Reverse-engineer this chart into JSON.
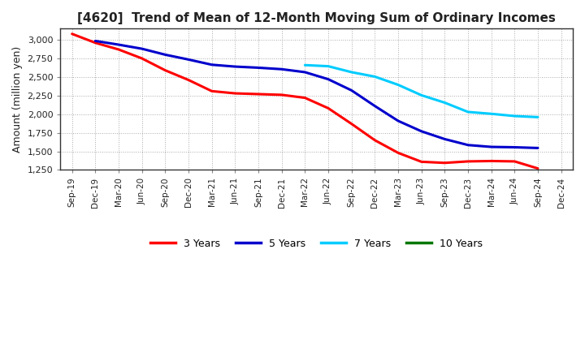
{
  "title": "[4620]  Trend of Mean of 12-Month Moving Sum of Ordinary Incomes",
  "ylabel": "Amount (million yen)",
  "ylim": [
    1250,
    3150
  ],
  "yticks": [
    1250,
    1500,
    1750,
    2000,
    2250,
    2500,
    2750,
    3000
  ],
  "background_color": "#ffffff",
  "plot_bg_color": "#ffffff",
  "grid_color": "#aaaaaa",
  "x_labels": [
    "Sep-19",
    "Dec-19",
    "Mar-20",
    "Jun-20",
    "Sep-20",
    "Dec-20",
    "Mar-21",
    "Jun-21",
    "Sep-21",
    "Dec-21",
    "Mar-22",
    "Jun-22",
    "Sep-22",
    "Dec-22",
    "Mar-23",
    "Jun-23",
    "Sep-23",
    "Dec-23",
    "Mar-24",
    "Jun-24",
    "Sep-24",
    "Dec-24"
  ],
  "series": {
    "3 Years": {
      "color": "#ff0000",
      "data_y": [
        3080,
        2960,
        2870,
        2750,
        2590,
        2460,
        2310,
        2280,
        2270,
        2260,
        2220,
        2080,
        1870,
        1650,
        1480,
        1360,
        1345,
        1365,
        1370,
        1365,
        1270,
        null
      ]
    },
    "5 Years": {
      "color": "#0000cc",
      "data_y": [
        null,
        2985,
        2935,
        2880,
        2800,
        2735,
        2665,
        2640,
        2625,
        2605,
        2565,
        2470,
        2320,
        2110,
        1910,
        1770,
        1665,
        1585,
        1560,
        1555,
        1545,
        null
      ]
    },
    "7 Years": {
      "color": "#00ccff",
      "data_y": [
        null,
        null,
        null,
        null,
        null,
        null,
        null,
        null,
        null,
        null,
        2660,
        2645,
        2565,
        2505,
        2395,
        2255,
        2155,
        2030,
        2005,
        1975,
        1960,
        null
      ]
    },
    "10 Years": {
      "color": "#007700",
      "data_y": [
        null,
        null,
        null,
        null,
        null,
        null,
        null,
        null,
        null,
        null,
        null,
        null,
        null,
        null,
        null,
        null,
        null,
        null,
        null,
        null,
        null,
        null
      ]
    }
  },
  "legend_order": [
    "3 Years",
    "5 Years",
    "7 Years",
    "10 Years"
  ],
  "title_fontsize": 11,
  "ylabel_fontsize": 9,
  "tick_fontsize": 8,
  "xtick_fontsize": 7.5
}
